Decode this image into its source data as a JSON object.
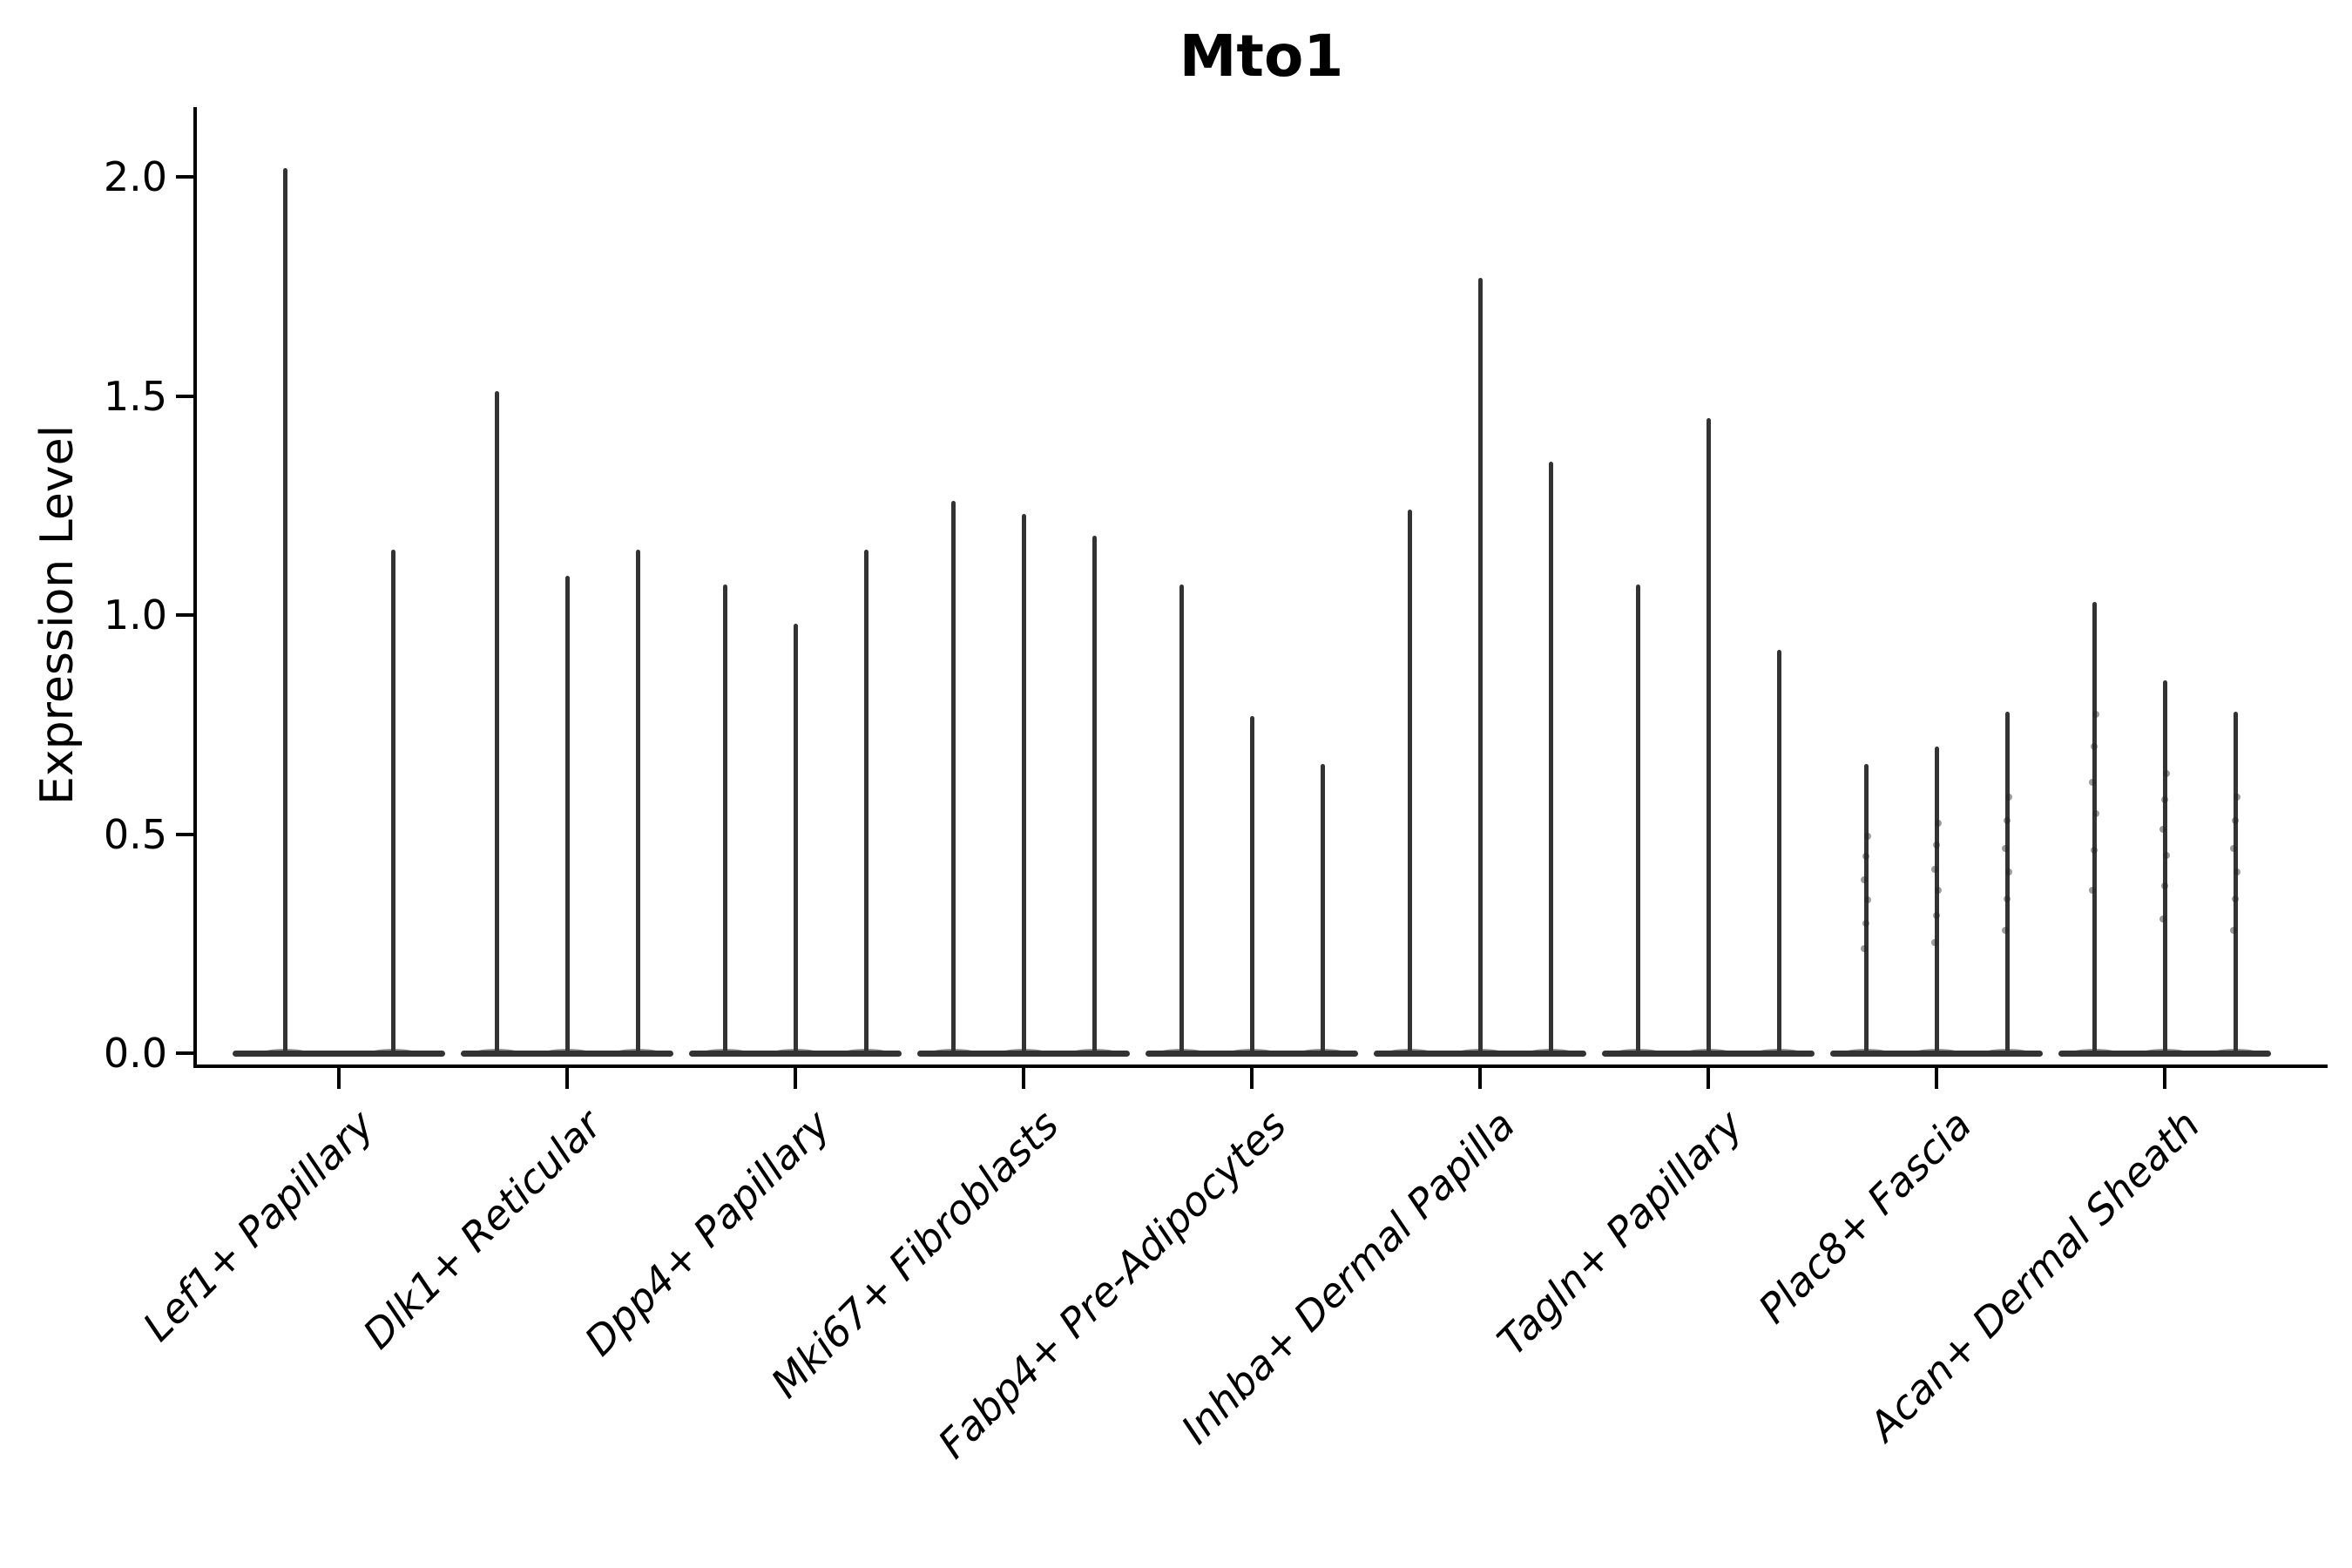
{
  "title": "Mto1",
  "y_axis_label": "Expression Level",
  "chart_data": {
    "type": "violin",
    "title": "Mto1",
    "xlabel": "",
    "ylabel": "Expression Level",
    "ylim": [
      -0.03,
      2.16
    ],
    "yticks": [
      0.0,
      0.5,
      1.0,
      1.5,
      2.0
    ],
    "ytick_labels": [
      "0.0",
      "0.5",
      "1.0",
      "1.5",
      "2.0"
    ],
    "grid": false,
    "legend_position": "none",
    "x_tick_label_rotation_deg": 45,
    "x_tick_label_style": "italic",
    "description": "Needle-thin violins: nearly all mass at expression 0 (flat baseline), each violin reduced to a vertical spike whose top is the maximum expression value.",
    "categories": [
      "Lef1+ Papillary",
      "Dlk1+ Reticular",
      "Dpp4+ Papillary",
      "Mki67+ Fibroblasts",
      "Fabp4+ Pre-Adipocytes",
      "Inhba+ Dermal Papilla",
      "Tagln+ Papillary",
      "Plac8+ Fascia",
      "Acan+ Dermal Sheath"
    ],
    "groups": [
      {
        "label": "Lef1+ Papillary",
        "violin_max_values": [
          2.02,
          1.15
        ],
        "baseline_value": 0.0,
        "points_visible": false
      },
      {
        "label": "Dlk1+ Reticular",
        "violin_max_values": [
          1.51,
          1.09,
          1.15
        ],
        "baseline_value": 0.0,
        "points_visible": false
      },
      {
        "label": "Dpp4+ Papillary",
        "violin_max_values": [
          1.07,
          0.98,
          1.15
        ],
        "baseline_value": 0.0,
        "points_visible": false
      },
      {
        "label": "Mki67+ Fibroblasts",
        "violin_max_values": [
          1.26,
          1.23,
          1.18
        ],
        "baseline_value": 0.0,
        "points_visible": false
      },
      {
        "label": "Fabp4+ Pre-Adipocytes",
        "violin_max_values": [
          1.07,
          0.77,
          0.66
        ],
        "baseline_value": 0.0,
        "points_visible": false
      },
      {
        "label": "Inhba+ Dermal Papilla",
        "violin_max_values": [
          1.24,
          1.77,
          1.35
        ],
        "baseline_value": 0.0,
        "points_visible": false
      },
      {
        "label": "Tagln+ Papillary",
        "violin_max_values": [
          1.07,
          1.45,
          0.92
        ],
        "baseline_value": 0.0,
        "points_visible": false
      },
      {
        "label": "Plac8+ Fascia",
        "violin_max_values": [
          0.66,
          0.7,
          0.78
        ],
        "baseline_value": 0.0,
        "points_visible": true
      },
      {
        "label": "Acan+ Dermal Sheath",
        "violin_max_values": [
          1.03,
          0.85,
          0.78
        ],
        "baseline_value": 0.0,
        "points_visible": true
      }
    ],
    "colors": {
      "violin_line": "#333333",
      "axis": "#000000",
      "text": "#000000",
      "background": "#ffffff"
    }
  }
}
